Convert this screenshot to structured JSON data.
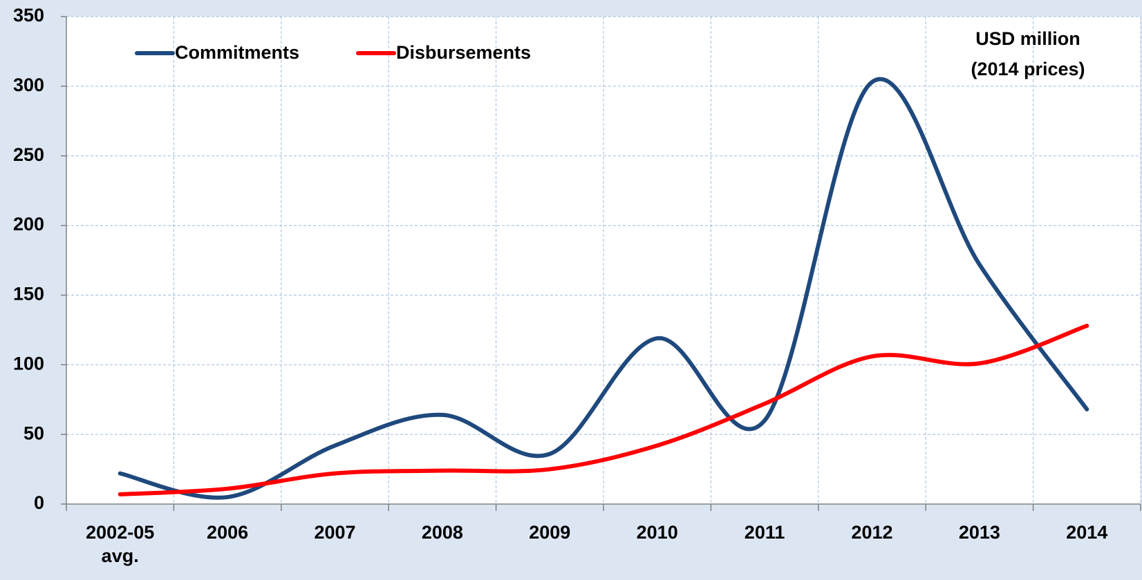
{
  "chart_data": {
    "type": "line",
    "annotation": [
      "USD million",
      "(2014 prices)"
    ],
    "categories": [
      "2002-05 avg.",
      "2006",
      "2007",
      "2008",
      "2009",
      "2010",
      "2011",
      "2012",
      "2013",
      "2014"
    ],
    "series": [
      {
        "name": "Commitments",
        "color": "#1f497d",
        "values": [
          22,
          5,
          42,
          64,
          36,
          119,
          60,
          303,
          172,
          68
        ]
      },
      {
        "name": "Disbursements",
        "color": "#ff0000",
        "values": [
          7,
          11,
          22,
          24,
          25,
          42,
          72,
          106,
          101,
          128
        ]
      }
    ],
    "ylim": [
      0,
      350
    ],
    "yticks": [
      0,
      50,
      100,
      150,
      200,
      250,
      300,
      350
    ],
    "grid": true,
    "smooth": true,
    "legend": "upper left"
  }
}
